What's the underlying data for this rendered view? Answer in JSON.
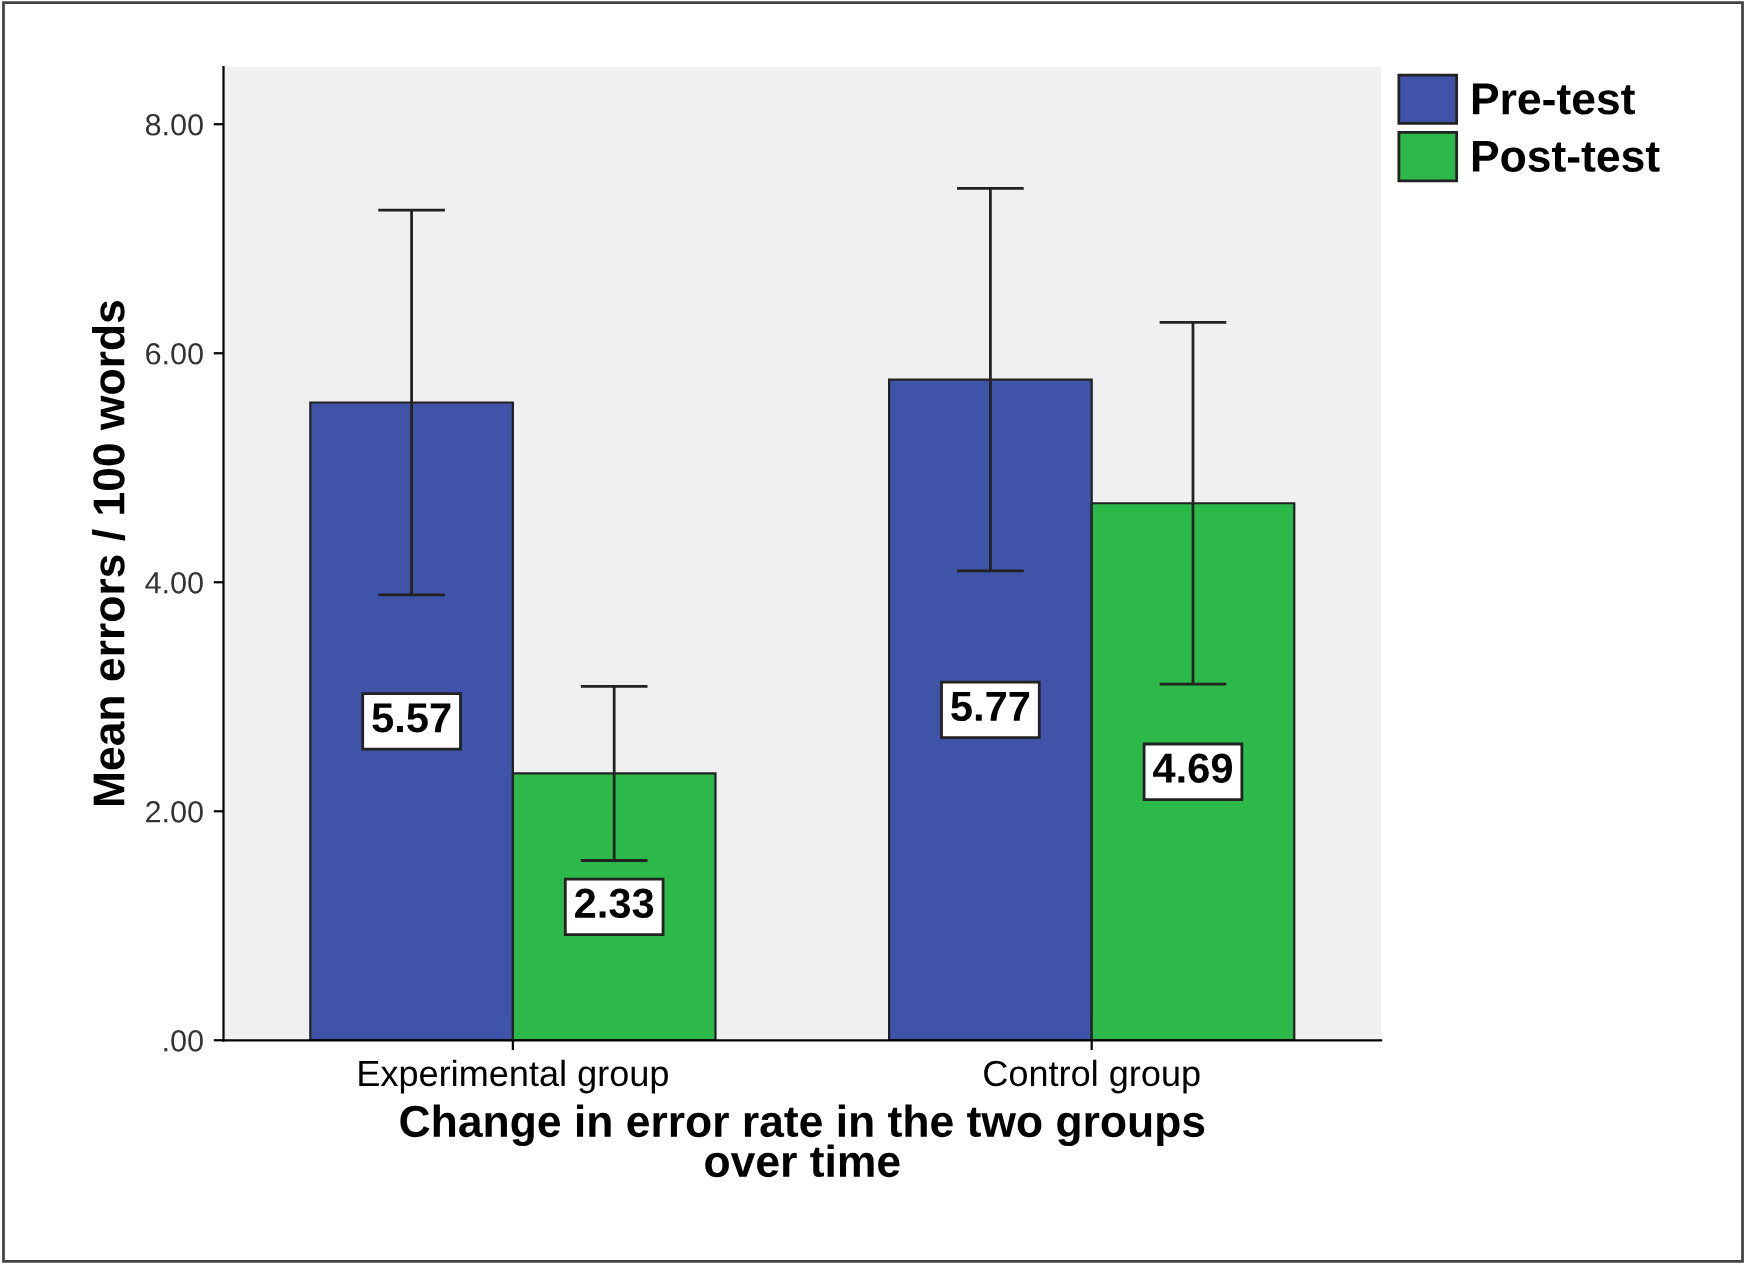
{
  "chart_data": {
    "type": "bar",
    "xlabel": "Change in error rate in the two groups\nover time",
    "ylabel": "Mean errors / 100 words",
    "categories": [
      "Experimental group",
      "Control group"
    ],
    "series": [
      {
        "name": "Pre-test",
        "color": "#3f54a8",
        "values": [
          5.57,
          5.77
        ],
        "errors": [
          1.68,
          1.67
        ]
      },
      {
        "name": "Post-test",
        "color": "#2db84a",
        "values": [
          2.33,
          4.69
        ],
        "errors": [
          0.76,
          1.58
        ]
      }
    ],
    "ylim": [
      0,
      8.5
    ],
    "yticks": [
      {
        "value": 0,
        "label": ".00"
      },
      {
        "value": 2,
        "label": "2.00"
      },
      {
        "value": 4,
        "label": "4.00"
      },
      {
        "value": 6,
        "label": "6.00"
      },
      {
        "value": 8,
        "label": "8.00"
      }
    ],
    "data_labels": true,
    "legend": "top right",
    "grid": false
  }
}
